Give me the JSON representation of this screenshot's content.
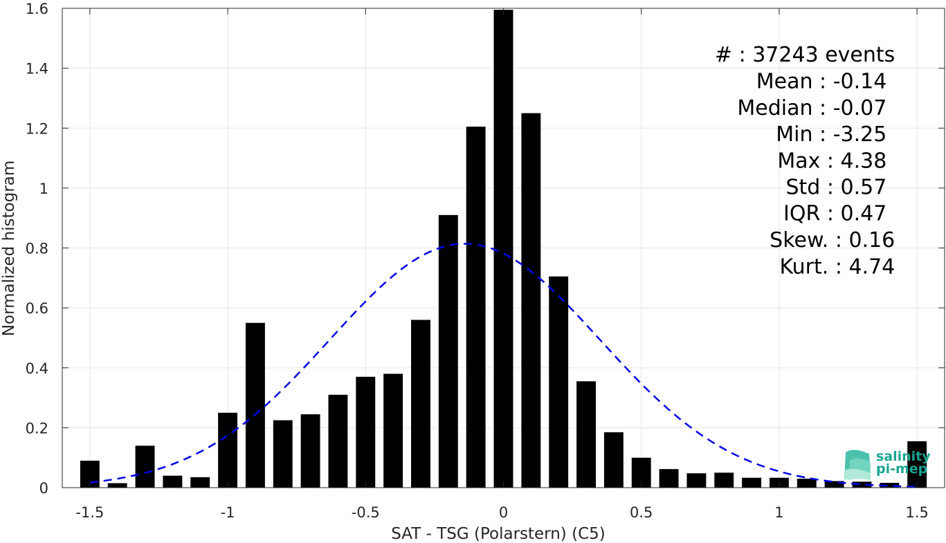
{
  "chart_data": {
    "type": "bar",
    "xlabel": "SAT - TSG (Polarstern) (C5)",
    "ylabel": "Normalized histogram",
    "xlim": [
      -1.6,
      1.6
    ],
    "ylim": [
      0,
      1.6
    ],
    "grid": true,
    "xticks": [
      -1.5,
      -1,
      -0.5,
      0,
      0.5,
      1,
      1.5
    ],
    "xtick_labels": [
      "-1.5",
      "-1",
      "-0.5",
      "0",
      "0.5",
      "1",
      "1.5"
    ],
    "yticks": [
      0,
      0.2,
      0.4,
      0.6,
      0.8,
      1,
      1.2,
      1.4,
      1.6
    ],
    "ytick_labels": [
      "0",
      "0.2",
      "0.4",
      "0.6",
      "0.8",
      "1",
      "1.2",
      "1.4",
      "1.6"
    ],
    "bin_width": 0.1,
    "bar_color": "#000000",
    "bars": {
      "x": [
        -1.5,
        -1.4,
        -1.3,
        -1.2,
        -1.1,
        -1.0,
        -0.9,
        -0.8,
        -0.7,
        -0.6,
        -0.5,
        -0.4,
        -0.3,
        -0.2,
        -0.1,
        0.0,
        0.1,
        0.2,
        0.3,
        0.4,
        0.5,
        0.6,
        0.7,
        0.8,
        0.9,
        1.0,
        1.1,
        1.2,
        1.3,
        1.4,
        1.5
      ],
      "values": [
        0.09,
        0.015,
        0.14,
        0.04,
        0.035,
        0.25,
        0.55,
        0.225,
        0.245,
        0.31,
        0.37,
        0.38,
        0.56,
        0.91,
        1.205,
        1.595,
        1.25,
        0.705,
        0.355,
        0.185,
        0.1,
        0.062,
        0.048,
        0.05,
        0.033,
        0.033,
        0.03,
        0.022,
        0.02,
        0.016,
        0.155
      ]
    },
    "fit": {
      "type": "normal",
      "mean": -0.14,
      "std": 0.49,
      "color": "#0000e6",
      "style": "dashed",
      "x_range": [
        -1.5,
        1.5
      ]
    },
    "stats": [
      {
        "label": "#  : 37243 events",
        "anchor": "end",
        "x": 1.42,
        "y": 1.422
      },
      {
        "label": "Mean : -0.14",
        "anchor": "end",
        "x": 1.39,
        "y": 1.333
      },
      {
        "label": "Median : -0.07",
        "anchor": "end",
        "x": 1.39,
        "y": 1.245
      },
      {
        "label": "Min : -3.25",
        "anchor": "end",
        "x": 1.39,
        "y": 1.157
      },
      {
        "label": "Max : 4.38",
        "anchor": "end",
        "x": 1.39,
        "y": 1.068
      },
      {
        "label": "Std : 0.57",
        "anchor": "end",
        "x": 1.39,
        "y": 0.98
      },
      {
        "label": "IQR : 0.47",
        "anchor": "end",
        "x": 1.39,
        "y": 0.892
      },
      {
        "label": "Skew. : 0.16",
        "anchor": "end",
        "x": 1.42,
        "y": 0.803
      },
      {
        "label": "Kurt. : 4.74",
        "anchor": "end",
        "x": 1.42,
        "y": 0.715
      }
    ]
  },
  "logo": {
    "line1": "salinity",
    "line2": "pi-mep",
    "color": "#1aa592"
  }
}
